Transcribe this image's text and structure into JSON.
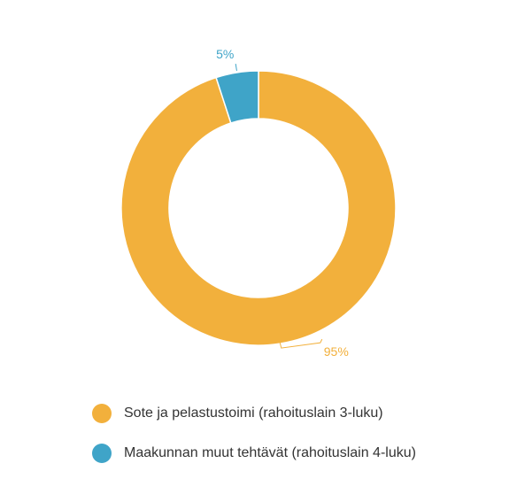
{
  "chart_data": {
    "type": "pie",
    "donut": true,
    "categories": [
      "Sote ja pelastustoimi (rahoituslain 3-luku)",
      "Maakunnan muut tehtävät (rahoituslain 4-luku)"
    ],
    "values": [
      95,
      5
    ],
    "data_labels": [
      "95%",
      "5%"
    ],
    "colors": [
      "#f2b03c",
      "#3fa4c8"
    ],
    "legend_placement": "bottom",
    "start_angle_deg": 0,
    "direction": "clockwise"
  }
}
